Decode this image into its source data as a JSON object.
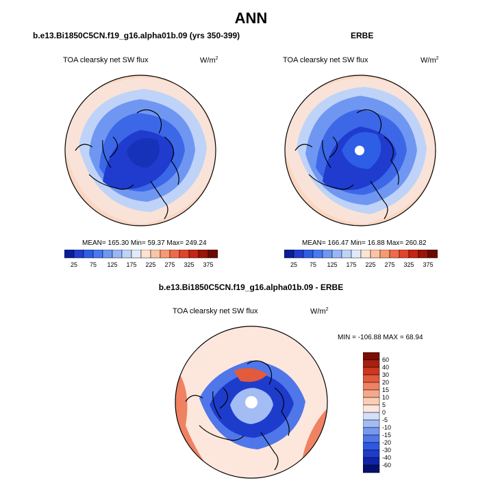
{
  "title": "ANN",
  "panels": {
    "model": {
      "title": "b.e13.Bi1850C5CN.f19_g16.alpha01b.09 (yrs 350-399)",
      "variable": "TOA clearsky net SW flux",
      "units": "W/m",
      "units_exp": "2",
      "stats": "MEAN= 165.30  Min=  59.37  Max= 249.24"
    },
    "obs": {
      "title": "ERBE",
      "variable": "TOA clearsky net SW flux",
      "units": "W/m",
      "units_exp": "2",
      "stats": "MEAN= 166.47  Min=  16.88  Max= 260.82"
    },
    "diff": {
      "title": "b.e13.Bi1850C5CN.f19_g16.alpha01b.09 - ERBE",
      "variable": "TOA clearsky net SW flux",
      "units": "W/m",
      "units_exp": "2",
      "stats": "MIN = -106.88 MAX =  68.94"
    }
  },
  "chart_data": [
    {
      "type": "heatmap",
      "projection": "north-polar-stereographic",
      "title": "b.e13.Bi1850C5CN.f19_g16.alpha01b.09 (yrs 350-399)",
      "variable": "TOA clearsky net SW flux",
      "units": "W/m^2",
      "mean": 165.3,
      "min": 59.37,
      "max": 249.24,
      "colorbar_levels": [
        25,
        50,
        75,
        100,
        125,
        150,
        175,
        200,
        225,
        250,
        275,
        300,
        325,
        350,
        375
      ],
      "colorbar_tick_labels": [
        "25",
        "75",
        "125",
        "175",
        "225",
        "275",
        "325",
        "375"
      ],
      "colors": [
        "#0b1d96",
        "#1f3ccf",
        "#2e5ee6",
        "#4a78f0",
        "#6f97f2",
        "#97b6f5",
        "#bfd3f8",
        "#e1eafa",
        "#fde3d0",
        "#fbc4a4",
        "#f59a75",
        "#ee6b4a",
        "#e0452b",
        "#c42514",
        "#9a1408",
        "#6b0a04"
      ]
    },
    {
      "type": "heatmap",
      "projection": "north-polar-stereographic",
      "title": "ERBE",
      "variable": "TOA clearsky net SW flux",
      "units": "W/m^2",
      "mean": 166.47,
      "min": 16.88,
      "max": 260.82,
      "colorbar_levels": [
        25,
        50,
        75,
        100,
        125,
        150,
        175,
        200,
        225,
        250,
        275,
        300,
        325,
        350,
        375
      ],
      "colorbar_tick_labels": [
        "25",
        "75",
        "125",
        "175",
        "225",
        "275",
        "325",
        "375"
      ],
      "colors": [
        "#0b1d96",
        "#1f3ccf",
        "#2e5ee6",
        "#4a78f0",
        "#6f97f2",
        "#97b6f5",
        "#bfd3f8",
        "#e1eafa",
        "#fde3d0",
        "#fbc4a4",
        "#f59a75",
        "#ee6b4a",
        "#e0452b",
        "#c42514",
        "#9a1408",
        "#6b0a04"
      ]
    },
    {
      "type": "heatmap",
      "projection": "north-polar-stereographic",
      "title": "b.e13.Bi1850C5CN.f19_g16.alpha01b.09 - ERBE",
      "variable": "TOA clearsky net SW flux",
      "units": "W/m^2",
      "min": -106.88,
      "max": 68.94,
      "colorbar_levels": [
        -60,
        -40,
        -30,
        -20,
        -15,
        -10,
        -5,
        0,
        5,
        10,
        15,
        20,
        30,
        40,
        60
      ],
      "colorbar_tick_labels": [
        "60",
        "40",
        "30",
        "20",
        "15",
        "10",
        "5",
        "0",
        "-5",
        "-10",
        "-15",
        "-20",
        "-30",
        "-40",
        "-60"
      ],
      "colors": [
        "#050f6e",
        "#1024a8",
        "#1e3ccc",
        "#2f58e0",
        "#4f77ea",
        "#7698ef",
        "#a3bcf4",
        "#d2e0fa",
        "#fde7dc",
        "#fbcdb4",
        "#f6a98a",
        "#ef8262",
        "#e35a3c",
        "#cc3720",
        "#a8200f",
        "#7a0e06"
      ]
    }
  ]
}
